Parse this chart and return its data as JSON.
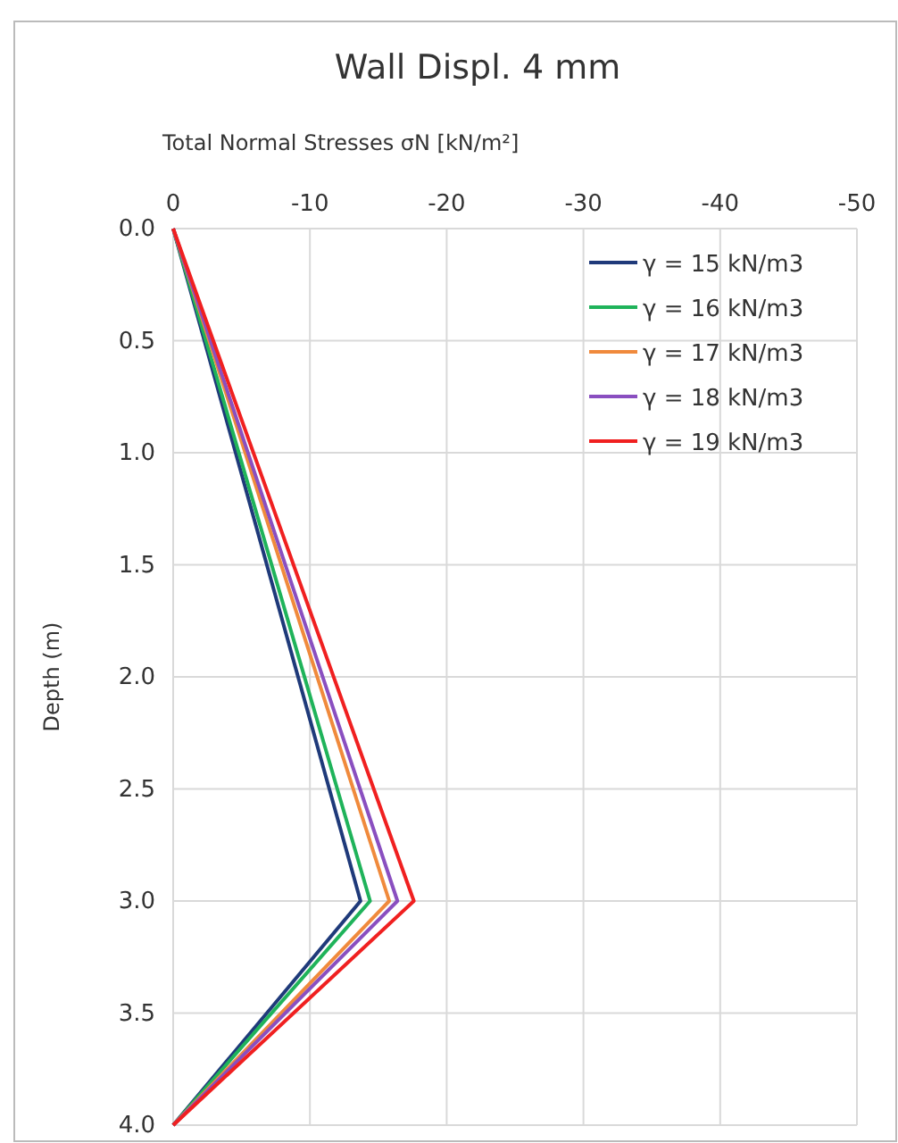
{
  "chart_data": {
    "type": "line",
    "title": "Wall Displ. 4 mm",
    "xlabel": "Total Normal Stresses σN [kN/m²]",
    "ylabel": "Depth (m)",
    "xlim": [
      0,
      -50
    ],
    "xticks": [
      0,
      -10,
      -20,
      -30,
      -40,
      -50
    ],
    "ylim": [
      4,
      0
    ],
    "yticks": [
      {
        "value": 0,
        "label": "0.0"
      },
      {
        "value": 0.5,
        "label": "0.5"
      },
      {
        "value": 1,
        "label": "1.0"
      },
      {
        "value": 1.5,
        "label": "1.5"
      },
      {
        "value": 2,
        "label": "2.0"
      },
      {
        "value": 2.5,
        "label": "2.5"
      },
      {
        "value": 3,
        "label": "3.0"
      },
      {
        "value": 3.5,
        "label": "3.5"
      },
      {
        "value": 4,
        "label": "4.0"
      }
    ],
    "grid": true,
    "legend": "top right",
    "marker": "none",
    "line_style": "solid",
    "series": [
      {
        "name": "γ = 15 kN/m3",
        "color": "#1f3a7a",
        "x": [
          0,
          -13.7,
          0
        ],
        "values": [
          0,
          3,
          4
        ]
      },
      {
        "name": "γ = 16 kN/m3",
        "color": "#1fb35a",
        "x": [
          0,
          -14.4,
          0
        ],
        "values": [
          0,
          3,
          4
        ]
      },
      {
        "name": "γ = 17 kN/m3",
        "color": "#f08a3c",
        "x": [
          0,
          -15.8,
          0
        ],
        "values": [
          0,
          3,
          4
        ]
      },
      {
        "name": "γ = 18 kN/m3",
        "color": "#8a4fc0",
        "x": [
          0,
          -16.4,
          0
        ],
        "values": [
          0,
          3,
          4
        ]
      },
      {
        "name": "γ = 19 kN/m3",
        "color": "#f02020",
        "x": [
          0,
          -17.6,
          0
        ],
        "values": [
          0,
          3,
          4
        ]
      }
    ]
  }
}
